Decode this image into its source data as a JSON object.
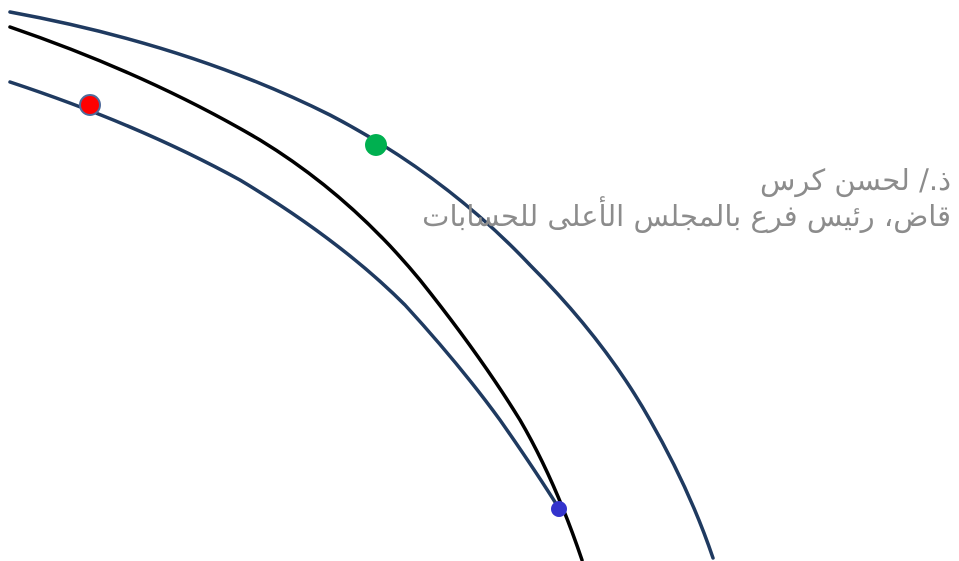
{
  "slide": {
    "author_name": "ذ./ لحسن كرس",
    "author_title": "قاض، رئيس فرع  بالمجلس الأعلى للحسابات"
  },
  "colors": {
    "background": "#ffffff",
    "curve_blue": "#1f3a60",
    "curve_black": "#000000",
    "dot_green": "#00b050",
    "dot_red": "#ff0000",
    "dot_blue": "#3333cc",
    "text_gray": "#8c8c8c"
  }
}
